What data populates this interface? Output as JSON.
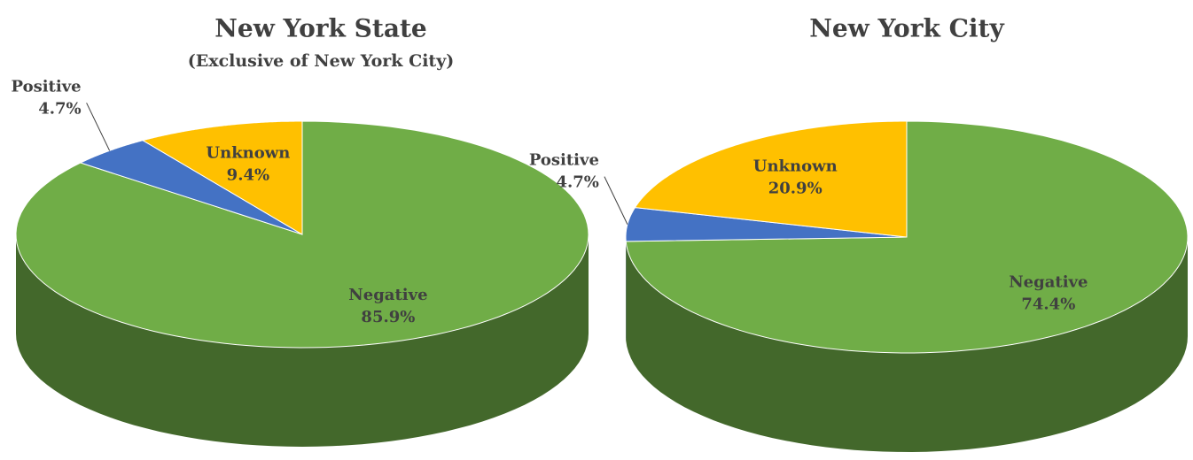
{
  "chart_data": [
    {
      "type": "pie",
      "title": "New York State",
      "subtitle": "(Exclusive of New York City)",
      "categories": [
        "Negative",
        "Positive",
        "Unknown"
      ],
      "values": [
        85.9,
        4.7,
        9.4
      ],
      "value_labels": [
        "85.9%",
        "4.7%",
        "9.4%"
      ],
      "colors": [
        "#70ad47",
        "#4472c4",
        "#ffc000"
      ]
    },
    {
      "type": "pie",
      "title": "New York City",
      "categories": [
        "Negative",
        "Positive",
        "Unknown"
      ],
      "values": [
        74.4,
        4.7,
        20.9
      ],
      "value_labels": [
        "74.4%",
        "4.7%",
        "20.9%"
      ],
      "colors": [
        "#70ad47",
        "#4472c4",
        "#ffc000"
      ]
    }
  ]
}
